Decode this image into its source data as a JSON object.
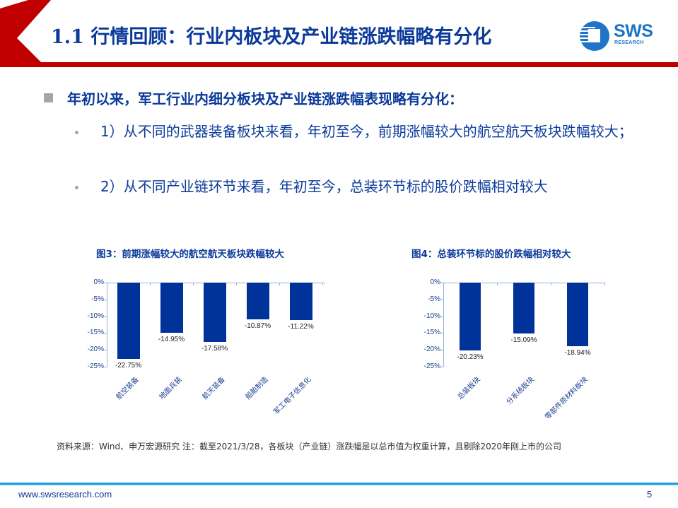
{
  "header": {
    "title": "1.1 行情回顾：行业内板块及产业链涨跌幅略有分化",
    "logo": {
      "name": "SWS",
      "sub": "RESEARCH"
    },
    "accent_color": "#c00000",
    "title_color": "#0b3a9a"
  },
  "bullets": {
    "main": "年初以来，军工行业内细分板块及产业链涨跌幅表现略有分化：",
    "items": [
      "1）从不同的武器装备板块来看，年初至今，前期涨幅较大的航空航天板块跌幅较大；",
      "2）从不同产业链环节来看，年初至今，总装环节标的股价跌幅相对较大"
    ]
  },
  "chart_data": [
    {
      "type": "bar",
      "title": "图3：前期涨幅较大的航空航天板块跌幅较大",
      "categories": [
        "航空装备",
        "地面兵装",
        "航天装备",
        "船舶制造",
        "军工电子信息化"
      ],
      "values": [
        -22.75,
        -14.95,
        -17.58,
        -10.87,
        -11.22
      ],
      "value_labels": [
        "-22.75%",
        "-14.95%",
        "-17.58%",
        "-10.87%",
        "-11.22%"
      ],
      "yticks": [
        "0%",
        "-5%",
        "-10%",
        "-15%",
        "-20%",
        "-25%"
      ],
      "ylim": [
        -25,
        0
      ],
      "xlabel": "",
      "ylabel": "",
      "grid": false,
      "bar_color": "#003399"
    },
    {
      "type": "bar",
      "title": "图4：总装环节标的股价跌幅相对较大",
      "categories": [
        "总装板块",
        "分系统板块",
        "零部件原材料板块"
      ],
      "values": [
        -20.23,
        -15.09,
        -18.94
      ],
      "value_labels": [
        "-20.23%",
        "-15.09%",
        "-18.94%"
      ],
      "yticks": [
        "0%",
        "-5%",
        "-10%",
        "-15%",
        "-20%",
        "-25%"
      ],
      "ylim": [
        -25,
        0
      ],
      "xlabel": "",
      "ylabel": "",
      "grid": false,
      "bar_color": "#003399"
    }
  ],
  "note": "资料来源：Wind、申万宏源研究  注：截至2021/3/28，各板块（产业链）涨跌幅是以总市值为权重计算，且剔除2020年刚上市的公司",
  "footer": {
    "url": "www.swsresearch.com",
    "page": "5"
  }
}
